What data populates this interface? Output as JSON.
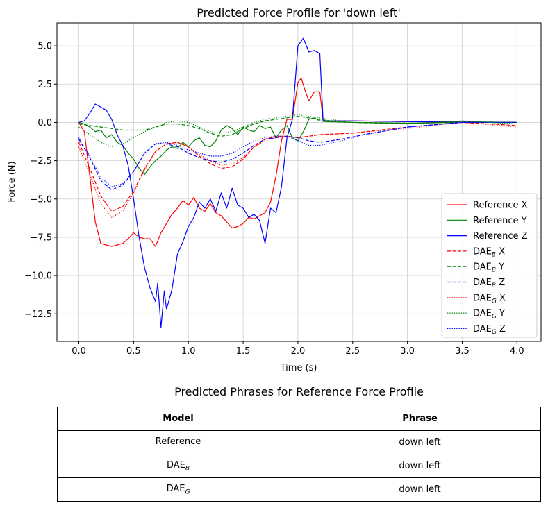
{
  "chart_data": {
    "type": "line",
    "title": "Predicted Force Profile for 'down left'",
    "xlabel": "Time (s)",
    "ylabel": "Force (N)",
    "xlim": [
      -0.2,
      4.22
    ],
    "ylim": [
      -14.3,
      6.5
    ],
    "xticks": [
      0.0,
      0.5,
      1.0,
      1.5,
      2.0,
      2.5,
      3.0,
      3.5,
      4.0
    ],
    "xtick_labels": [
      "0.0",
      "0.5",
      "1.0",
      "1.5",
      "2.0",
      "2.5",
      "3.0",
      "3.5",
      "4.0"
    ],
    "yticks": [
      5.0,
      2.5,
      0.0,
      -2.5,
      -5.0,
      -7.5,
      -10.0,
      -12.5
    ],
    "ytick_labels": [
      "5.0",
      "2.5",
      "0.0",
      "−2.5",
      "−5.0",
      "−7.5",
      "−10.0",
      "−12.5"
    ],
    "grid": true,
    "legend_position": "lower-right",
    "series": [
      {
        "name": "Reference X",
        "label_main": "Reference X",
        "label_sub": "",
        "label_tail": "",
        "color": "#ff0000",
        "dash": "solid",
        "x": [
          0,
          0.05,
          0.1,
          0.15,
          0.2,
          0.25,
          0.3,
          0.35,
          0.4,
          0.45,
          0.5,
          0.55,
          0.6,
          0.65,
          0.7,
          0.75,
          0.8,
          0.85,
          0.9,
          0.95,
          1.0,
          1.05,
          1.1,
          1.15,
          1.2,
          1.25,
          1.3,
          1.35,
          1.4,
          1.45,
          1.5,
          1.55,
          1.6,
          1.65,
          1.7,
          1.75,
          1.8,
          1.85,
          1.9,
          1.95,
          2.0,
          2.03,
          2.06,
          2.1,
          2.15,
          2.2,
          2.22,
          2.23,
          2.5,
          3.0,
          3.5,
          4.0
        ],
        "y": [
          0,
          -0.6,
          -3.5,
          -6.5,
          -7.9,
          -8.0,
          -8.1,
          -8.0,
          -7.9,
          -7.6,
          -7.2,
          -7.5,
          -7.6,
          -7.6,
          -8.1,
          -7.2,
          -6.6,
          -6.0,
          -5.6,
          -5.1,
          -5.4,
          -4.9,
          -5.6,
          -5.8,
          -5.3,
          -5.9,
          -6.1,
          -6.5,
          -6.9,
          -6.8,
          -6.6,
          -6.2,
          -6.3,
          -6.1,
          -5.9,
          -5.2,
          -3.5,
          -1.2,
          0.2,
          0.2,
          2.6,
          2.9,
          2.2,
          1.4,
          2.0,
          2.0,
          0.8,
          0.1,
          0.1,
          0.05,
          0.02,
          0.0
        ]
      },
      {
        "name": "Reference Y",
        "label_main": "Reference Y",
        "label_sub": "",
        "label_tail": "",
        "color": "#008000",
        "dash": "solid",
        "x": [
          0,
          0.05,
          0.1,
          0.15,
          0.2,
          0.25,
          0.3,
          0.35,
          0.4,
          0.45,
          0.5,
          0.55,
          0.6,
          0.65,
          0.7,
          0.75,
          0.8,
          0.85,
          0.9,
          0.95,
          1.0,
          1.05,
          1.1,
          1.15,
          1.2,
          1.25,
          1.3,
          1.35,
          1.4,
          1.45,
          1.5,
          1.55,
          1.6,
          1.65,
          1.7,
          1.75,
          1.8,
          1.85,
          1.9,
          1.95,
          2.0,
          2.05,
          2.1,
          2.15,
          2.2,
          2.25,
          2.5,
          3.0,
          3.5,
          4.0
        ],
        "y": [
          0,
          -0.1,
          -0.3,
          -0.6,
          -0.5,
          -1.0,
          -0.8,
          -1.3,
          -1.5,
          -2.0,
          -2.4,
          -3.0,
          -3.4,
          -2.9,
          -2.5,
          -2.2,
          -1.8,
          -1.6,
          -1.7,
          -1.3,
          -1.6,
          -1.2,
          -1.0,
          -1.5,
          -1.6,
          -1.2,
          -0.5,
          -0.2,
          -0.4,
          -0.8,
          -0.3,
          -0.5,
          -0.6,
          -0.2,
          -0.4,
          -0.3,
          -1.0,
          -0.5,
          -0.2,
          -1.0,
          -1.2,
          -0.6,
          0.2,
          0.3,
          0.1,
          0.05,
          0.0,
          -0.05,
          0.0,
          0.0
        ]
      },
      {
        "name": "Reference Z",
        "label_main": "Reference Z",
        "label_sub": "",
        "label_tail": "",
        "color": "#0000ff",
        "dash": "solid",
        "x": [
          0,
          0.05,
          0.1,
          0.15,
          0.2,
          0.25,
          0.3,
          0.35,
          0.4,
          0.45,
          0.5,
          0.55,
          0.6,
          0.65,
          0.7,
          0.72,
          0.75,
          0.78,
          0.8,
          0.85,
          0.9,
          0.95,
          1.0,
          1.05,
          1.1,
          1.15,
          1.2,
          1.25,
          1.3,
          1.35,
          1.4,
          1.45,
          1.5,
          1.55,
          1.6,
          1.65,
          1.7,
          1.75,
          1.8,
          1.85,
          1.9,
          1.95,
          2.0,
          2.05,
          2.1,
          2.15,
          2.2,
          2.23,
          2.5,
          3.0,
          3.5,
          4.0
        ],
        "y": [
          0,
          0.1,
          0.6,
          1.2,
          1.0,
          0.8,
          0.2,
          -0.8,
          -1.5,
          -2.8,
          -5.0,
          -7.5,
          -9.5,
          -10.8,
          -11.7,
          -10.5,
          -13.4,
          -11.0,
          -12.2,
          -10.9,
          -8.6,
          -7.8,
          -6.8,
          -6.2,
          -5.2,
          -5.6,
          -5.0,
          -5.8,
          -4.6,
          -5.6,
          -4.3,
          -5.4,
          -5.6,
          -6.2,
          -6.0,
          -6.4,
          -7.9,
          -5.6,
          -5.9,
          -4.2,
          -1.0,
          0.2,
          5.0,
          5.5,
          4.6,
          4.7,
          4.5,
          0.1,
          0.1,
          0.05,
          0.02,
          0.0
        ]
      },
      {
        "name": "DAE_B X",
        "label_main": "DAE",
        "label_sub": "B",
        "label_tail": " X",
        "color": "#ff0000",
        "dash": "dashed",
        "x": [
          0,
          0.1,
          0.2,
          0.3,
          0.4,
          0.5,
          0.6,
          0.7,
          0.8,
          0.9,
          1.0,
          1.1,
          1.2,
          1.3,
          1.4,
          1.5,
          1.6,
          1.7,
          1.8,
          1.9,
          2.0,
          2.2,
          2.5,
          3.0,
          3.5,
          4.0
        ],
        "y": [
          -1.3,
          -3.0,
          -4.8,
          -5.8,
          -5.5,
          -4.5,
          -3.0,
          -1.9,
          -1.4,
          -1.3,
          -1.6,
          -2.2,
          -2.7,
          -3.0,
          -2.9,
          -2.4,
          -1.6,
          -1.1,
          -0.9,
          -0.9,
          -1.0,
          -0.8,
          -0.7,
          -0.3,
          0.0,
          -0.2
        ]
      },
      {
        "name": "DAE_B Y",
        "label_main": "DAE",
        "label_sub": "B",
        "label_tail": " Y",
        "color": "#008000",
        "dash": "dashed",
        "x": [
          0,
          0.2,
          0.4,
          0.6,
          0.7,
          0.8,
          0.9,
          1.0,
          1.1,
          1.2,
          1.3,
          1.4,
          1.5,
          1.6,
          1.7,
          1.8,
          1.9,
          2.0,
          2.1,
          2.3,
          2.5,
          3.0,
          3.5,
          4.0
        ],
        "y": [
          -0.1,
          -0.3,
          -0.5,
          -0.5,
          -0.3,
          -0.1,
          -0.1,
          -0.2,
          -0.4,
          -0.7,
          -0.9,
          -0.8,
          -0.4,
          -0.1,
          0.1,
          0.2,
          0.3,
          0.4,
          0.3,
          0.1,
          0.0,
          -0.1,
          0.05,
          0.0
        ]
      },
      {
        "name": "DAE_B Z",
        "label_main": "DAE",
        "label_sub": "B",
        "label_tail": " Z",
        "color": "#0000ff",
        "dash": "dashed",
        "x": [
          0,
          0.1,
          0.2,
          0.3,
          0.4,
          0.5,
          0.6,
          0.7,
          0.8,
          0.9,
          1.0,
          1.1,
          1.2,
          1.3,
          1.4,
          1.5,
          1.6,
          1.7,
          1.8,
          1.9,
          2.0,
          2.1,
          2.2,
          2.4,
          2.6,
          3.0,
          3.5,
          4.0
        ],
        "y": [
          -1.1,
          -2.3,
          -3.8,
          -4.4,
          -4.1,
          -3.2,
          -2.0,
          -1.4,
          -1.4,
          -1.6,
          -2.0,
          -2.3,
          -2.5,
          -2.6,
          -2.4,
          -2.0,
          -1.5,
          -1.1,
          -1.0,
          -0.9,
          -1.0,
          -1.2,
          -1.3,
          -1.1,
          -0.8,
          -0.3,
          0.0,
          0.0
        ]
      },
      {
        "name": "DAE_G X",
        "label_main": "DAE",
        "label_sub": "G",
        "label_tail": " X",
        "color": "#ff0000",
        "dash": "dotted",
        "x": [
          0,
          0.1,
          0.2,
          0.3,
          0.4,
          0.5,
          0.6,
          0.7,
          0.8,
          0.9,
          1.0,
          1.1,
          1.2,
          1.3,
          1.4,
          1.5,
          1.6,
          1.7,
          1.8,
          1.9,
          2.0,
          2.2,
          2.5,
          3.0,
          3.5,
          4.0
        ],
        "y": [
          -1.6,
          -3.4,
          -5.3,
          -6.2,
          -5.8,
          -4.6,
          -3.1,
          -1.9,
          -1.4,
          -1.3,
          -1.6,
          -2.1,
          -2.5,
          -2.8,
          -2.7,
          -2.3,
          -1.6,
          -1.2,
          -1.0,
          -0.9,
          -1.0,
          -0.8,
          -0.7,
          -0.4,
          0.0,
          -0.3
        ]
      },
      {
        "name": "DAE_G Y",
        "label_main": "DAE",
        "label_sub": "G",
        "label_tail": " Y",
        "color": "#008000",
        "dash": "dotted",
        "x": [
          0,
          0.1,
          0.2,
          0.3,
          0.4,
          0.5,
          0.6,
          0.7,
          0.8,
          0.9,
          1.0,
          1.1,
          1.2,
          1.3,
          1.4,
          1.5,
          1.6,
          1.7,
          1.8,
          1.9,
          2.0,
          2.1,
          2.3,
          2.5,
          3.0,
          3.5,
          4.0
        ],
        "y": [
          -0.3,
          -0.8,
          -1.3,
          -1.6,
          -1.4,
          -1.0,
          -0.6,
          -0.3,
          0.0,
          0.1,
          0.0,
          -0.3,
          -0.6,
          -0.7,
          -0.6,
          -0.3,
          0.0,
          0.2,
          0.3,
          0.4,
          0.5,
          0.4,
          0.2,
          0.0,
          -0.1,
          0.1,
          -0.1
        ]
      },
      {
        "name": "DAE_G Z",
        "label_main": "DAE",
        "label_sub": "G",
        "label_tail": " Z",
        "color": "#0000ff",
        "dash": "dotted",
        "x": [
          0,
          0.1,
          0.2,
          0.3,
          0.4,
          0.5,
          0.6,
          0.7,
          0.8,
          0.9,
          1.0,
          1.1,
          1.2,
          1.3,
          1.4,
          1.5,
          1.6,
          1.7,
          1.8,
          1.9,
          2.0,
          2.1,
          2.2,
          2.4,
          2.6,
          3.0,
          3.5,
          4.0
        ],
        "y": [
          -1.0,
          -2.2,
          -3.6,
          -4.2,
          -4.0,
          -3.2,
          -2.0,
          -1.4,
          -1.3,
          -1.5,
          -1.8,
          -2.0,
          -2.2,
          -2.2,
          -2.0,
          -1.6,
          -1.2,
          -1.0,
          -0.9,
          -0.9,
          -1.2,
          -1.5,
          -1.5,
          -1.2,
          -0.8,
          -0.3,
          0.0,
          0.0
        ]
      }
    ]
  },
  "table": {
    "title": "Predicted Phrases for Reference Force Profile",
    "header_model": "Model",
    "header_phrase": "Phrase",
    "rows": [
      {
        "model_main": "Reference",
        "model_sub": "",
        "phrase": "down left"
      },
      {
        "model_main": "DAE",
        "model_sub": "B",
        "phrase": "down left"
      },
      {
        "model_main": "DAE",
        "model_sub": "G",
        "phrase": "down left"
      }
    ]
  }
}
